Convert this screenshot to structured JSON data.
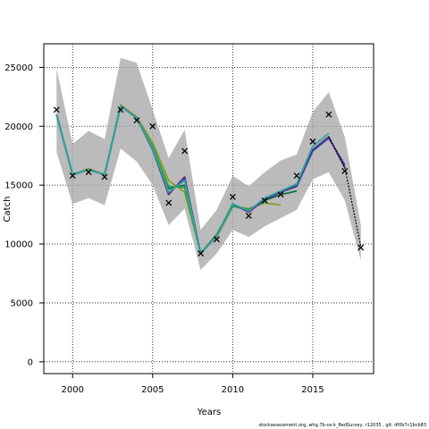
{
  "chart_data": {
    "type": "line",
    "title": "",
    "xlabel": "Years",
    "ylabel": "Catch",
    "xlim": [
      1998.2,
      2018.8
    ],
    "ylim": [
      -1000,
      27000
    ],
    "xticks": [
      2000,
      2005,
      2010,
      2015
    ],
    "yticks": [
      0,
      5000,
      10000,
      15000,
      20000,
      25000
    ],
    "grid": "dotted",
    "band": {
      "x": [
        1999,
        2000,
        2001,
        2002,
        2003,
        2004,
        2005,
        2006,
        2007,
        2008,
        2009,
        2010,
        2011,
        2012,
        2013,
        2014,
        2015,
        2016,
        2017,
        2018
      ],
      "upper": [
        24900,
        18500,
        19600,
        18900,
        25800,
        25400,
        21400,
        17300,
        19700,
        11200,
        12900,
        15800,
        14900,
        16100,
        17100,
        17600,
        21200,
        22900,
        19100,
        11600
      ],
      "lower": [
        17800,
        13400,
        13900,
        13300,
        18100,
        17000,
        15000,
        11600,
        13000,
        7800,
        9200,
        11200,
        10600,
        11500,
        12200,
        12900,
        15500,
        16100,
        13700,
        8600
      ]
    },
    "observed": {
      "x": [
        1999,
        2000,
        2001,
        2002,
        2003,
        2004,
        2005,
        2006,
        2007,
        2008,
        2009,
        2010,
        2011,
        2012,
        2013,
        2014,
        2015,
        2016,
        2017,
        2018
      ],
      "y": [
        21400,
        15800,
        16100,
        15700,
        21400,
        20500,
        20000,
        13500,
        17900,
        9200,
        10400,
        14000,
        12400,
        13700,
        14200,
        15800,
        18700,
        21000,
        16200,
        9700
      ]
    },
    "series": [
      {
        "color": "#8a9a2a",
        "x": [
          1999,
          2000,
          2001,
          2002,
          2003,
          2004,
          2005,
          2006,
          2007,
          2008,
          2009,
          2010,
          2011,
          2012,
          2013
        ],
        "values": [
          21000,
          15900,
          16400,
          15900,
          21800,
          20800,
          18600,
          15400,
          14400,
          9300,
          10600,
          13200,
          13000,
          13500,
          13300
        ]
      },
      {
        "color": "#176d45",
        "x": [
          1999,
          2000,
          2001,
          2002,
          2003,
          2004,
          2005,
          2006,
          2007,
          2008,
          2009,
          2010,
          2011,
          2012,
          2013,
          2014
        ],
        "values": [
          21000,
          15900,
          16300,
          15900,
          21700,
          20700,
          18200,
          14700,
          15000,
          9200,
          10800,
          13300,
          12900,
          13700,
          14200,
          14500
        ]
      },
      {
        "color": "#32a042",
        "x": [
          1999,
          2000,
          2001,
          2002,
          2003,
          2004,
          2005,
          2006,
          2007,
          2008,
          2009,
          2010,
          2011,
          2012
        ],
        "values": [
          21000,
          15900,
          16300,
          15900,
          21700,
          20700,
          18300,
          14900,
          14800,
          9200,
          10700,
          13200,
          12900,
          13600
        ]
      },
      {
        "color": "#1e4fa0",
        "x": [
          1999,
          2000,
          2001,
          2002,
          2003,
          2004,
          2005,
          2006,
          2007,
          2008,
          2009,
          2010,
          2011,
          2012,
          2013,
          2014,
          2015,
          2016,
          2017
        ],
        "values": [
          21000,
          15900,
          16300,
          15900,
          21700,
          20700,
          18100,
          14300,
          15600,
          9200,
          10700,
          13400,
          12800,
          13800,
          14400,
          14900,
          17900,
          19000,
          16700
        ]
      },
      {
        "color": "#5b2d8e",
        "x": [
          1999,
          2000,
          2001,
          2002,
          2003,
          2004,
          2005,
          2006,
          2007,
          2008,
          2009,
          2010,
          2011,
          2012,
          2013,
          2014,
          2015,
          2016,
          2017
        ],
        "values": [
          21000,
          15900,
          16300,
          15900,
          21700,
          20700,
          18000,
          14200,
          15700,
          9200,
          10700,
          13400,
          12700,
          13800,
          14400,
          15000,
          18000,
          19100,
          16500
        ]
      },
      {
        "color": "#2aa7a0",
        "x": [
          1999,
          2000,
          2001,
          2002,
          2003,
          2004,
          2005,
          2006,
          2007,
          2008,
          2009,
          2010,
          2011,
          2012,
          2013,
          2014,
          2015,
          2016
        ],
        "values": [
          21000,
          15900,
          16300,
          15900,
          21700,
          20700,
          18100,
          14400,
          15400,
          9200,
          10700,
          13400,
          12800,
          13900,
          14500,
          15100,
          18300,
          19400
        ]
      },
      {
        "color": "#000000",
        "dashed": true,
        "x": [
          2016,
          2017,
          2018
        ],
        "values": [
          19100,
          16500,
          9800
        ]
      }
    ]
  },
  "footer": "stockassessment.org,  whg.7b-ce-k_RedSurvey,  r12035 ,  git: df0b7c1bcb83"
}
